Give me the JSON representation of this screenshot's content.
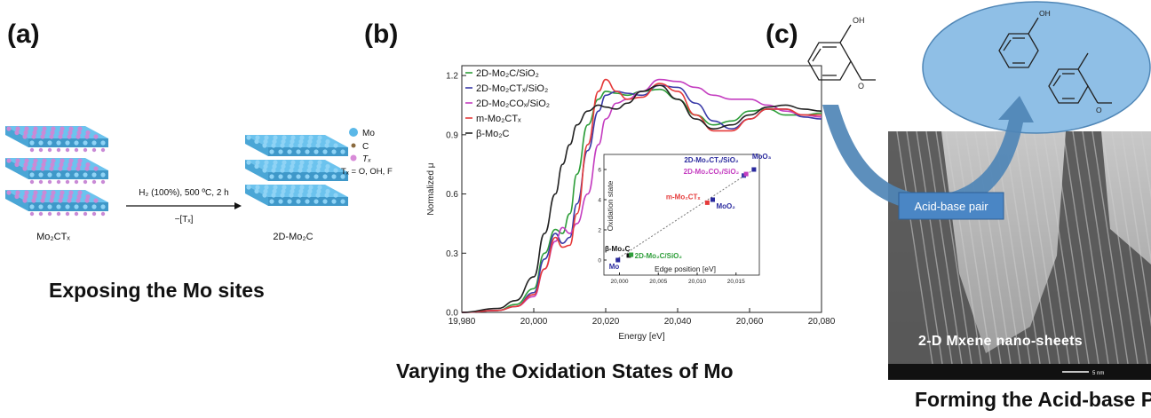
{
  "panels": {
    "a": {
      "label": "(a)",
      "caption": "Exposing the Mo sites",
      "reaction_top": "H₂ (100%), 500 ºC, 2 h",
      "reaction_bottom": "−[Tₓ]",
      "reactant": "Mo₂CTₓ",
      "product": "2D-Mo₂C",
      "legend": [
        {
          "label": "Mo",
          "color": "#5bb8e8"
        },
        {
          "label": "C",
          "color": "#8a6a3e"
        },
        {
          "label": "Tₓ",
          "color": "#d88bd8"
        }
      ],
      "legend_note": "Tₓ = O, OH, F",
      "colors": {
        "mo": "#6cc3ee",
        "mo_dark": "#3f98c9",
        "termination": "#c98ad6",
        "carbon": "#5a5a5a"
      }
    },
    "b": {
      "label": "(b)",
      "caption": "Varying the Oxidation States of Mo"
    },
    "c": {
      "label": "(c)",
      "caption": "Forming the Acid-base Pai",
      "acid_base_label": "Acid-base pair",
      "sheets_label": "2-D Mxene nano-sheets",
      "scale_label": "5 nm",
      "oh_label_reactant": "OH",
      "oh_label_product": "OH",
      "o_label_reactant": "O",
      "o_label_product": "O",
      "colors": {
        "ellipse": "#8fbfe6",
        "arrow": "#4f86b6",
        "box": "#4a86c5"
      }
    }
  },
  "chart_data": {
    "type": "line",
    "xlabel": "Energy [eV]",
    "ylabel": "Normalized μ",
    "xlim": [
      19980,
      20080
    ],
    "ylim": [
      0,
      1.25
    ],
    "xticks": [
      "19,980",
      "20,000",
      "20,020",
      "20,040",
      "20,060",
      "20,080"
    ],
    "yticks": [
      "0.0",
      "0.3",
      "0.6",
      "0.9",
      "1.2"
    ],
    "legend_position": "top-left",
    "series": [
      {
        "name": "2D-Mo₂C/SiO₂",
        "color": "#2e9e3a",
        "x": [
          19980,
          19990,
          19995,
          20000,
          20003,
          20006,
          20008,
          20010,
          20012,
          20015,
          20018,
          20020,
          20023,
          20026,
          20030,
          20035,
          20040,
          20045,
          20050,
          20055,
          20060,
          20065,
          20070,
          20075,
          20080
        ],
        "y": [
          0.0,
          0.01,
          0.04,
          0.12,
          0.3,
          0.42,
          0.4,
          0.5,
          0.7,
          0.95,
          1.08,
          1.12,
          1.11,
          1.1,
          1.12,
          1.13,
          1.08,
          1.0,
          0.95,
          0.97,
          1.02,
          1.03,
          1.0,
          1.0,
          1.01
        ]
      },
      {
        "name": "2D-Mo₂CTₓ/SiO₂",
        "color": "#3a3aa8",
        "x": [
          19980,
          19990,
          19995,
          20000,
          20003,
          20006,
          20008,
          20010,
          20012,
          20015,
          20018,
          20020,
          20023,
          20026,
          20030,
          20035,
          20040,
          20045,
          20050,
          20055,
          20060,
          20065,
          20070,
          20075,
          20080
        ],
        "y": [
          0.0,
          0.01,
          0.03,
          0.1,
          0.27,
          0.4,
          0.35,
          0.38,
          0.55,
          0.82,
          1.02,
          1.1,
          1.12,
          1.11,
          1.1,
          1.15,
          1.14,
          1.06,
          0.97,
          0.93,
          0.98,
          1.03,
          1.03,
          0.99,
          0.98
        ]
      },
      {
        "name": "2D-Mo₂COₓ/SiO₂",
        "color": "#c43dc0",
        "x": [
          19980,
          19990,
          19995,
          20000,
          20003,
          20006,
          20008,
          20010,
          20012,
          20015,
          20018,
          20020,
          20023,
          20026,
          20030,
          20035,
          20040,
          20045,
          20050,
          20055,
          20060,
          20065,
          20070,
          20075,
          20080
        ],
        "y": [
          0.0,
          0.01,
          0.03,
          0.08,
          0.22,
          0.36,
          0.43,
          0.4,
          0.45,
          0.6,
          0.85,
          0.98,
          1.06,
          1.08,
          1.12,
          1.18,
          1.17,
          1.14,
          1.1,
          1.08,
          1.08,
          1.05,
          1.02,
          1.0,
          0.99
        ]
      },
      {
        "name": "m-Mo₂CTₓ",
        "color": "#e53a3a",
        "x": [
          19980,
          19990,
          19995,
          20000,
          20003,
          20006,
          20008,
          20010,
          20012,
          20015,
          20018,
          20020,
          20023,
          20026,
          20030,
          20035,
          20040,
          20045,
          20050,
          20055,
          20060,
          20065,
          20070,
          20075,
          20080
        ],
        "y": [
          0.0,
          0.01,
          0.03,
          0.09,
          0.22,
          0.38,
          0.33,
          0.34,
          0.5,
          0.85,
          1.12,
          1.18,
          1.12,
          1.08,
          1.09,
          1.16,
          1.12,
          1.0,
          0.92,
          0.92,
          0.98,
          1.03,
          1.03,
          1.0,
          1.0
        ]
      },
      {
        "name": "β-Mo₂C",
        "color": "#222222",
        "x": [
          19980,
          19990,
          19995,
          20000,
          20003,
          20006,
          20008,
          20010,
          20012,
          20015,
          20018,
          20020,
          20023,
          20026,
          20030,
          20035,
          20040,
          20045,
          20050,
          20055,
          20060,
          20065,
          20070,
          20075,
          20080
        ],
        "y": [
          0.0,
          0.02,
          0.06,
          0.18,
          0.4,
          0.6,
          0.75,
          0.85,
          0.95,
          1.02,
          1.05,
          1.04,
          1.03,
          1.06,
          1.12,
          1.15,
          1.08,
          0.98,
          0.93,
          0.95,
          1.0,
          1.04,
          1.05,
          1.03,
          1.02
        ]
      }
    ],
    "inset": {
      "type": "scatter",
      "xlabel": "Edge position [eV]",
      "ylabel": "Oxidation state",
      "xlim": [
        19998,
        20018
      ],
      "ylim": [
        -1,
        7
      ],
      "xticks": [
        "20,000",
        "20,005",
        "20,010",
        "20,015"
      ],
      "yticks": [
        "0",
        "2",
        "4",
        "6"
      ],
      "fit_line": {
        "x": [
          19999.5,
          20017.3
        ],
        "y": [
          0.0,
          6.0
        ],
        "color": "#777777"
      },
      "points": [
        {
          "label": "Mo",
          "x": 19999.8,
          "y": 0.0,
          "color": "#2a2a9e",
          "label_color": "#2a2a9e"
        },
        {
          "label": "β-Mo₂C",
          "x": 20001.2,
          "y": 0.3,
          "color": "#111111",
          "label_color": "#111111"
        },
        {
          "label": "2D-Mo₂C/SiO₂",
          "x": 20001.5,
          "y": 0.35,
          "color": "#2e9e3a",
          "label_color": "#2e9e3a"
        },
        {
          "label": "m-Mo₂CTₓ",
          "x": 20011.3,
          "y": 3.8,
          "color": "#e53a3a",
          "label_color": "#e53a3a"
        },
        {
          "label": "MoO₂",
          "x": 20012.0,
          "y": 4.0,
          "color": "#2a2a9e",
          "label_color": "#2a2a9e"
        },
        {
          "label": "2D-Mo₂CTₓ/SiO₂",
          "x": 20016.0,
          "y": 5.6,
          "color": "#3a3aa8",
          "label_color": "#2a2a9e"
        },
        {
          "label": "2D-Mo₂COₓ/SiO₂",
          "x": 20016.3,
          "y": 5.7,
          "color": "#c43dc0",
          "label_color": "#c43dc0"
        },
        {
          "label": "MoO₃",
          "x": 20017.3,
          "y": 6.0,
          "color": "#2a2a9e",
          "label_color": "#2a2a9e"
        }
      ]
    }
  }
}
